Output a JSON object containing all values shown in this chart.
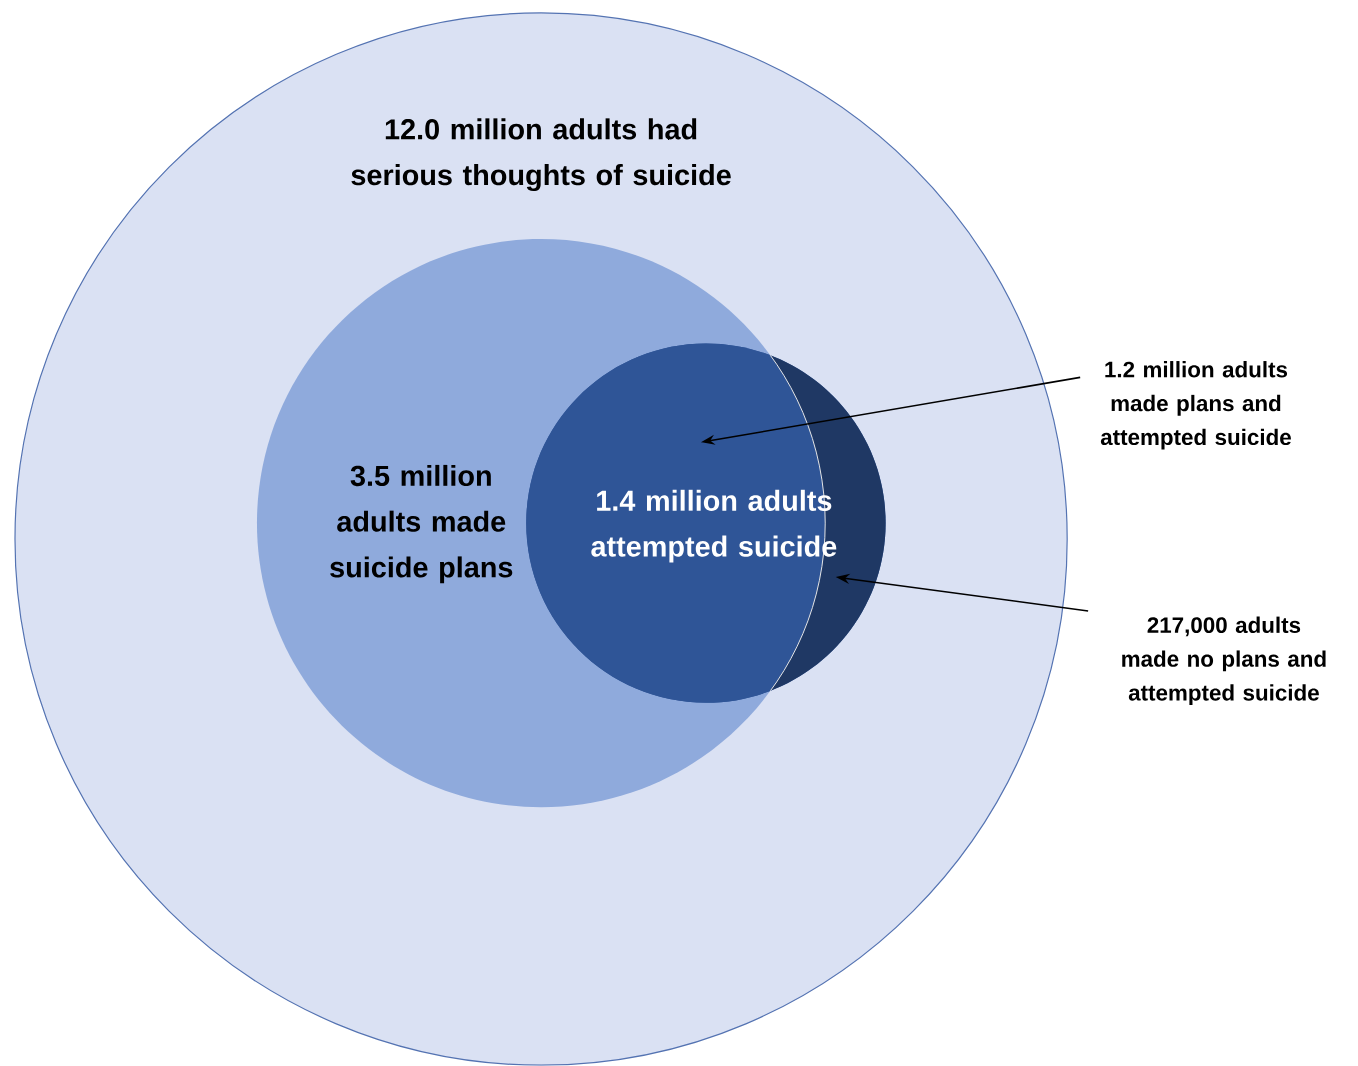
{
  "chart_data": {
    "type": "other",
    "categories": [
      "adults had serious thoughts of suicide",
      "adults made suicide plans",
      "adults attempted suicide",
      "adults made plans and attempted suicide",
      "adults made no plans and attempted suicide"
    ],
    "values": [
      12000000,
      3500000,
      1400000,
      1200000,
      217000
    ],
    "value_labels": [
      "12.0 million",
      "3.5 million",
      "1.4 million",
      "1.2 million",
      "217,000"
    ],
    "colors": [
      "#dae1f3",
      "#8faadc",
      "#2f5597",
      "#2f5597",
      "#1f3864"
    ]
  }
}
